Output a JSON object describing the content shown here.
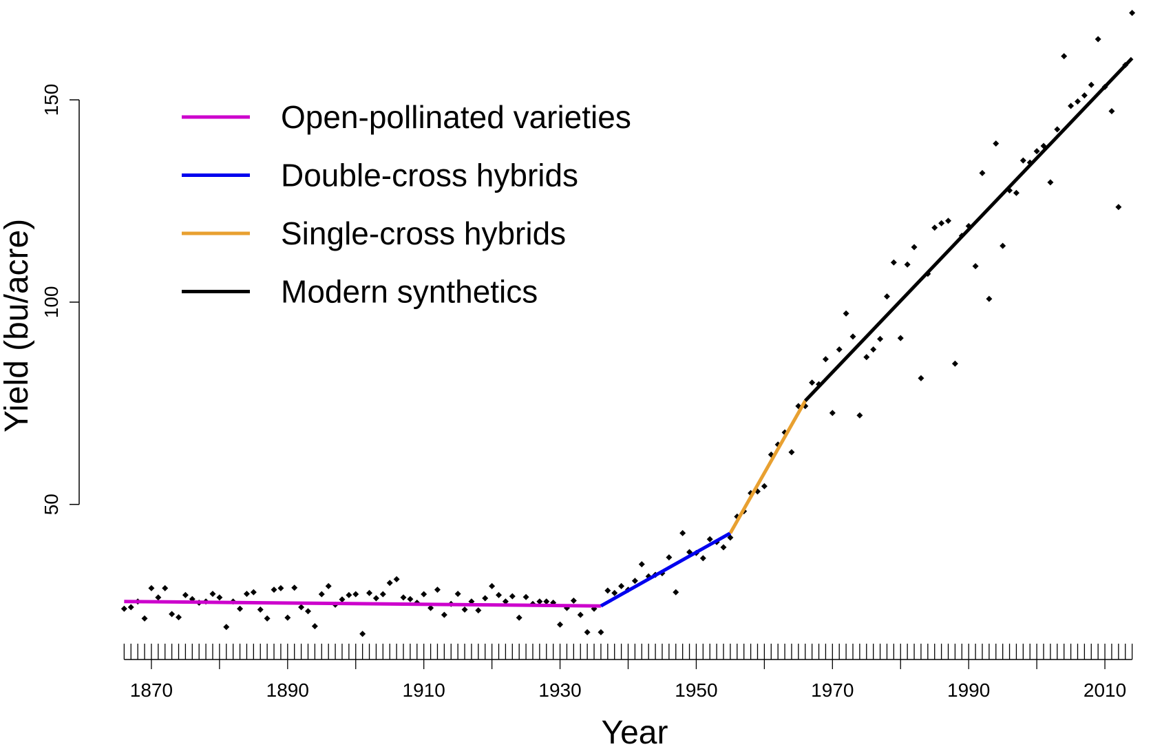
{
  "chart_data": {
    "type": "scatter",
    "ylabel": "Yield (bu/acre)",
    "xlabel": "Year",
    "xlim": [
      1860,
      2020
    ],
    "ylim": [
      12,
      174
    ],
    "xticks": [
      1870,
      1890,
      1910,
      1930,
      1950,
      1970,
      1990,
      2010
    ],
    "xmajorticks": [
      1880,
      1900,
      1920,
      1940,
      1960,
      1980,
      2000
    ],
    "xminorticks": [
      1866,
      1867,
      1868,
      1869,
      1871,
      1872,
      1873,
      1874,
      1875,
      1876,
      1877,
      1878,
      1879,
      1881,
      1882,
      1883,
      1884,
      1885,
      1886,
      1887,
      1888,
      1889,
      1891,
      1892,
      1893,
      1894,
      1895,
      1896,
      1897,
      1898,
      1899,
      1901,
      1902,
      1903,
      1904,
      1905,
      1906,
      1907,
      1908,
      1909,
      1911,
      1912,
      1913,
      1914,
      1915,
      1916,
      1917,
      1918,
      1919,
      1921,
      1922,
      1923,
      1924,
      1925,
      1926,
      1927,
      1928,
      1929,
      1931,
      1932,
      1933,
      1934,
      1935,
      1936,
      1937,
      1938,
      1939,
      1941,
      1942,
      1943,
      1944,
      1945,
      1946,
      1947,
      1948,
      1949,
      1951,
      1952,
      1953,
      1954,
      1955,
      1956,
      1957,
      1958,
      1959,
      1961,
      1962,
      1963,
      1964,
      1965,
      1966,
      1967,
      1968,
      1969,
      1971,
      1972,
      1973,
      1974,
      1975,
      1976,
      1977,
      1978,
      1979,
      1981,
      1982,
      1983,
      1984,
      1985,
      1986,
      1987,
      1988,
      1989,
      1991,
      1992,
      1993,
      1994,
      1995,
      1996,
      1997,
      1998,
      1999,
      2001,
      2002,
      2003,
      2004,
      2005,
      2006,
      2007,
      2008,
      2009,
      2011,
      2012,
      2013,
      2014
    ],
    "yticks": [
      50,
      100,
      150
    ],
    "point_color": "#000000",
    "points": {
      "x": [
        1866,
        1867,
        1868,
        1869,
        1870,
        1871,
        1872,
        1873,
        1874,
        1875,
        1876,
        1877,
        1878,
        1879,
        1880,
        1881,
        1882,
        1883,
        1884,
        1885,
        1886,
        1887,
        1888,
        1889,
        1890,
        1891,
        1892,
        1893,
        1894,
        1895,
        1896,
        1897,
        1898,
        1899,
        1900,
        1901,
        1902,
        1903,
        1904,
        1905,
        1906,
        1907,
        1908,
        1909,
        1910,
        1911,
        1912,
        1913,
        1914,
        1915,
        1916,
        1917,
        1918,
        1919,
        1920,
        1921,
        1922,
        1923,
        1924,
        1925,
        1926,
        1927,
        1928,
        1929,
        1930,
        1931,
        1932,
        1933,
        1934,
        1935,
        1936,
        1937,
        1938,
        1939,
        1940,
        1941,
        1942,
        1943,
        1944,
        1945,
        1946,
        1947,
        1948,
        1949,
        1950,
        1951,
        1952,
        1953,
        1954,
        1955,
        1956,
        1957,
        1958,
        1959,
        1960,
        1961,
        1962,
        1963,
        1964,
        1965,
        1966,
        1967,
        1968,
        1969,
        1970,
        1971,
        1972,
        1973,
        1974,
        1975,
        1976,
        1977,
        1978,
        1979,
        1980,
        1981,
        1982,
        1983,
        1984,
        1985,
        1986,
        1987,
        1988,
        1989,
        1990,
        1991,
        1992,
        1993,
        1994,
        1995,
        1996,
        1997,
        1998,
        1999,
        2000,
        2001,
        2002,
        2003,
        2004,
        2005,
        2006,
        2007,
        2008,
        2009,
        2010,
        2011,
        2012,
        2013,
        2014
      ],
      "values": [
        24.2,
        24.6,
        26,
        21.8,
        29.3,
        27,
        29.3,
        22.9,
        22.1,
        27.6,
        26.6,
        25.7,
        26,
        27.9,
        27,
        19.7,
        26,
        24.2,
        27.9,
        28.3,
        24,
        21.8,
        28.9,
        29.3,
        22,
        29.4,
        24.6,
        23.6,
        19.9,
        27.8,
        29.8,
        25.2,
        26.5,
        27.6,
        27.8,
        18,
        28.1,
        26.8,
        27.8,
        30.6,
        31.5,
        27,
        26.6,
        25.7,
        27.8,
        24.4,
        28.9,
        22.7,
        25.4,
        27.9,
        24,
        26,
        23.8,
        26.8,
        29.8,
        27.6,
        26,
        27.3,
        22,
        27.1,
        25.4,
        26,
        26,
        25.7,
        20.3,
        24.4,
        26.2,
        22.7,
        18.4,
        24.2,
        18.4,
        28.7,
        28.1,
        29.8,
        28.9,
        31.1,
        35.2,
        32.2,
        32.6,
        33,
        36.9,
        28.3,
        42.9,
        38.2,
        38,
        36.7,
        41.4,
        40.7,
        39.4,
        41.8,
        47,
        48.3,
        52.8,
        53.2,
        54.5,
        62.3,
        64.8,
        67.8,
        62.9,
        74.3,
        74.3,
        80.1,
        79.7,
        85.9,
        72.6,
        88.3,
        97.2,
        91.5,
        72,
        86.4,
        88.3,
        90.9,
        101.4,
        109.8,
        91.1,
        109.3,
        113.6,
        81.2,
        107,
        118.4,
        119.5,
        120.1,
        84.8,
        116.4,
        118.8,
        108.9,
        131.9,
        100.8,
        139.2,
        113.9,
        127.6,
        127,
        135,
        134.5,
        137.3,
        138.6,
        129.6,
        142.7,
        160.8,
        148.5,
        149.6,
        151.1,
        153.7,
        165,
        153.2,
        147.2,
        123.5,
        158.6,
        171.5
      ]
    },
    "series": [
      {
        "name": "Open-pollinated varieties",
        "color": "#cc00cc",
        "x": [
          1866,
          1936
        ],
        "values": [
          26,
          24.9
        ]
      },
      {
        "name": "Double-cross hybrids",
        "color": "#0000ee",
        "x": [
          1936,
          1955
        ],
        "values": [
          24.9,
          42.9
        ]
      },
      {
        "name": "Single-cross hybrids",
        "color": "#e8a030",
        "x": [
          1955,
          1966
        ],
        "values": [
          42.9,
          75.6
        ]
      },
      {
        "name": "Modern synthetics",
        "color": "#000000",
        "x": [
          1966,
          2014
        ],
        "values": [
          75.6,
          160.3
        ]
      }
    ]
  }
}
